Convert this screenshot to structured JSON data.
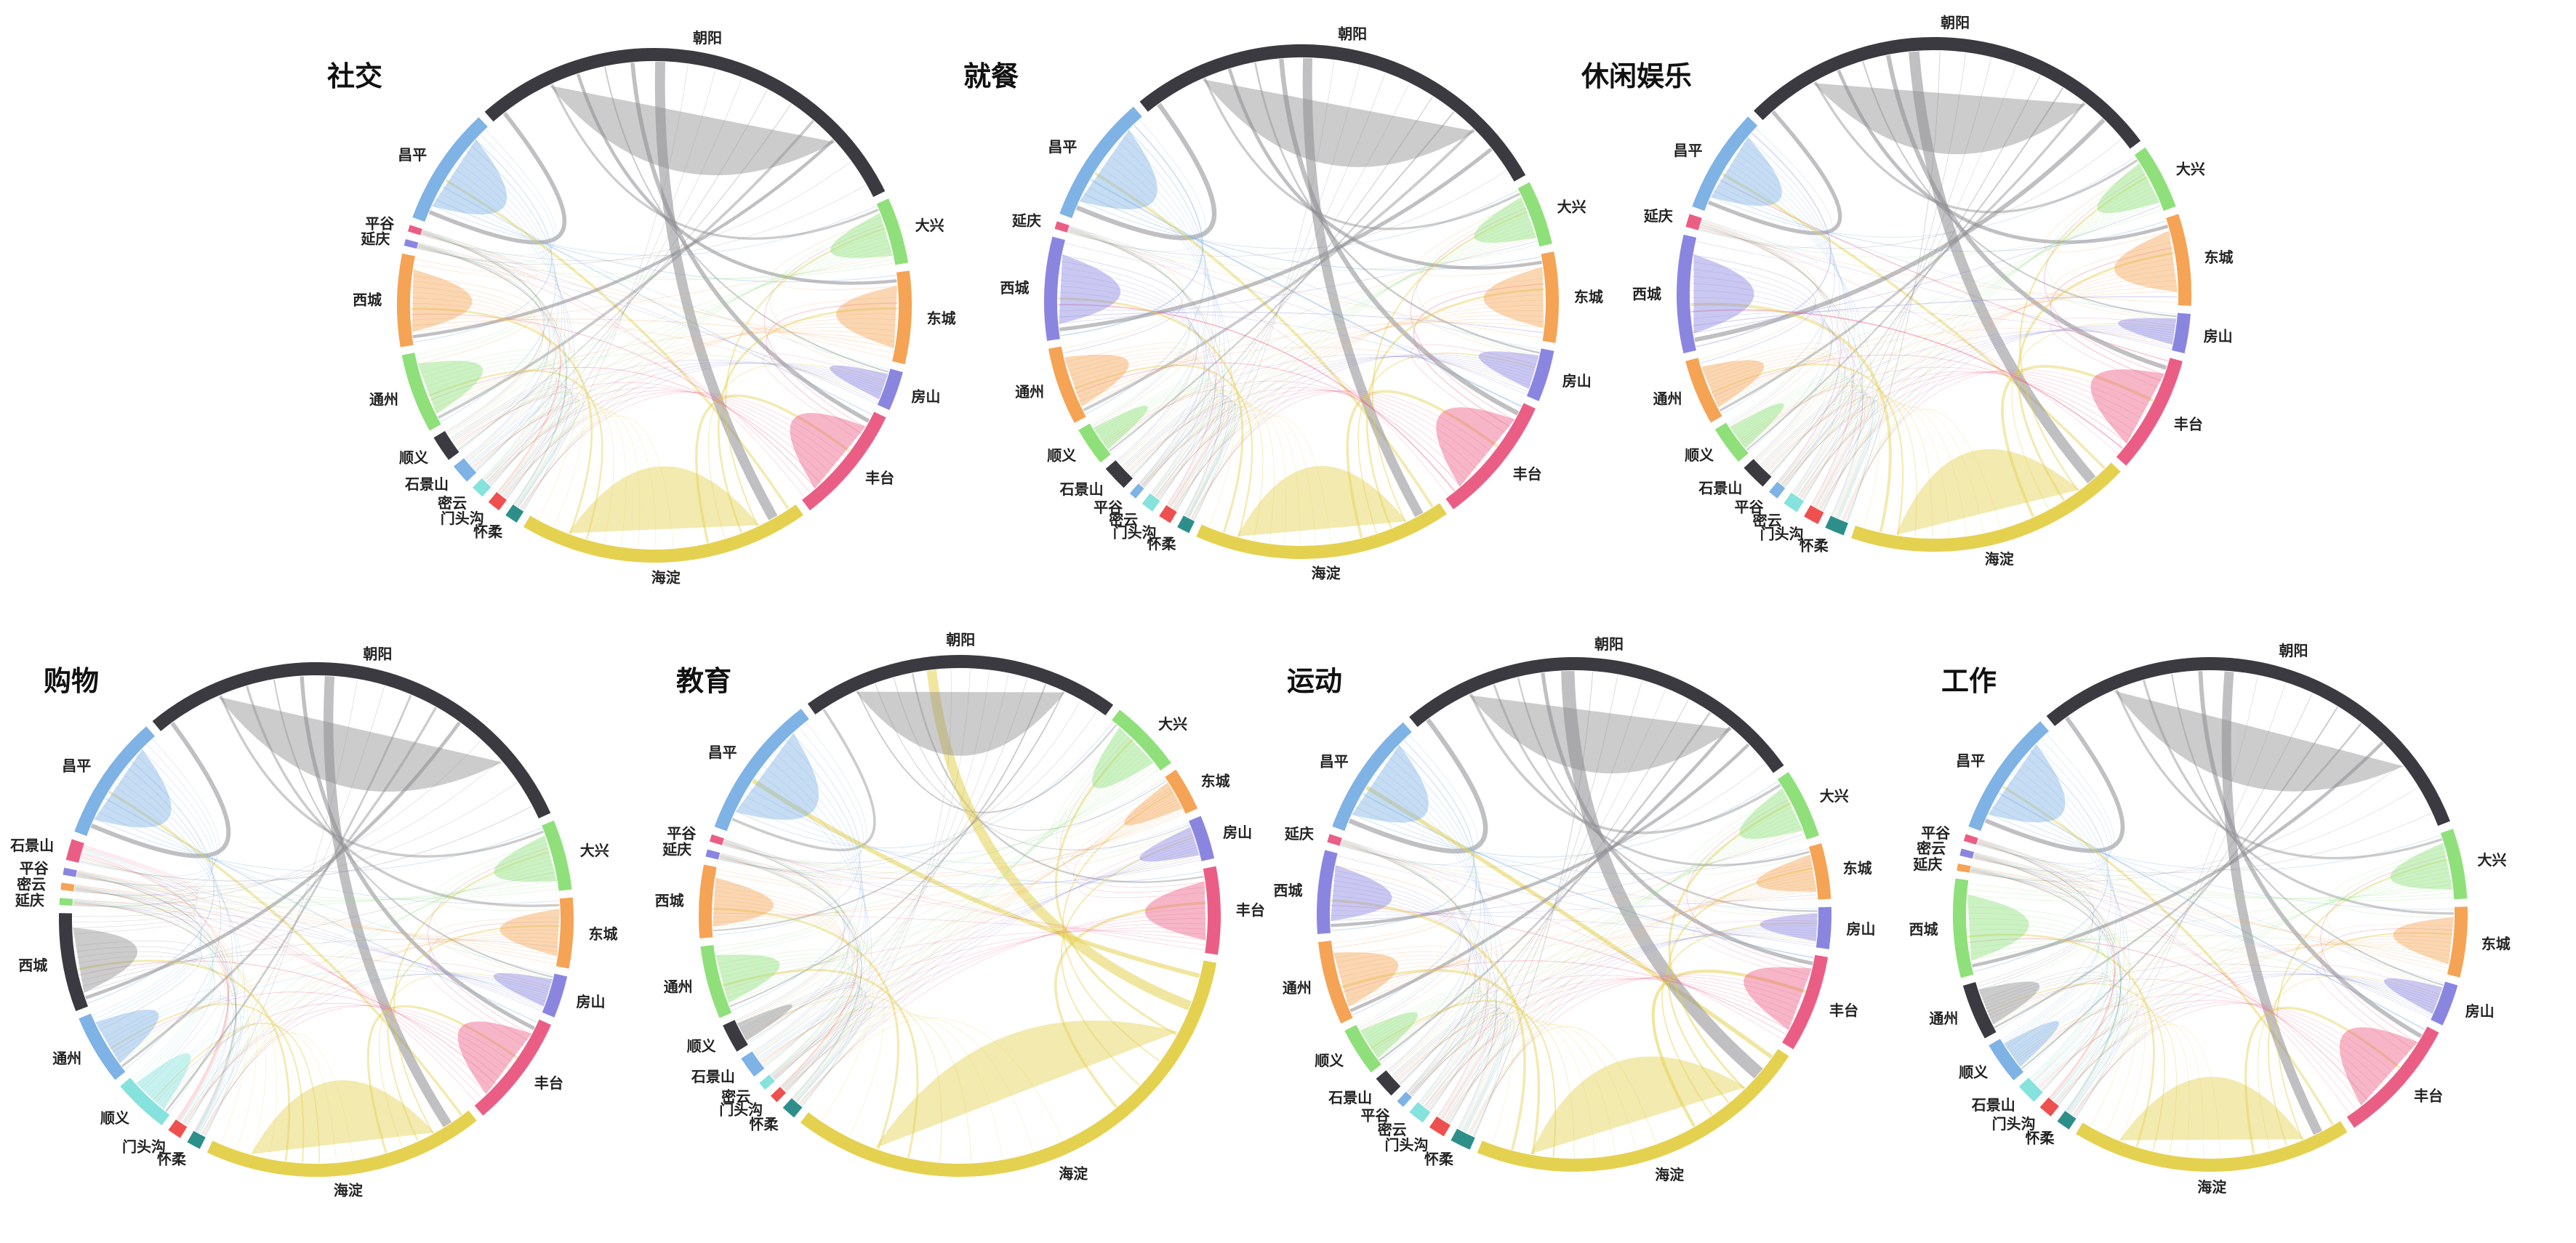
{
  "chart_data": [
    {
      "type": "chord",
      "title": "社交",
      "segments": [
        {
          "name": "昌平",
          "value": 9,
          "color": "#7fb2e5"
        },
        {
          "name": "朝阳",
          "value": 35,
          "color": "#3a3a40"
        },
        {
          "name": "大兴",
          "value": 5,
          "color": "#8fe07a"
        },
        {
          "name": "东城",
          "value": 7,
          "color": "#f5a355"
        },
        {
          "name": "房山",
          "value": 3,
          "color": "#8a86e0"
        },
        {
          "name": "丰台",
          "value": 9,
          "color": "#ea5e86"
        },
        {
          "name": "海淀",
          "value": 22,
          "color": "#e5d150"
        },
        {
          "name": "怀柔",
          "value": 1,
          "color": "#2e8f8a"
        },
        {
          "name": "门头沟",
          "value": 1,
          "color": "#ee5050"
        },
        {
          "name": "密云",
          "value": 1,
          "color": "#86e2dc"
        },
        {
          "name": "石景山",
          "value": 1.5,
          "color": "#7fb2e5"
        },
        {
          "name": "顺义",
          "value": 2,
          "color": "#3a3a40"
        },
        {
          "name": "通州",
          "value": 6,
          "color": "#8fe07a"
        },
        {
          "name": "西城",
          "value": 7,
          "color": "#f5a355"
        },
        {
          "name": "延庆",
          "value": 0.5,
          "color": "#8a86e0"
        },
        {
          "name": "平谷",
          "value": 0.5,
          "color": "#ea5e86"
        }
      ]
    },
    {
      "type": "chord",
      "title": "就餐",
      "segments": [
        {
          "name": "昌平",
          "value": 10,
          "color": "#7fb2e5"
        },
        {
          "name": "朝阳",
          "value": 34,
          "color": "#3a3a40"
        },
        {
          "name": "大兴",
          "value": 5,
          "color": "#8fe07a"
        },
        {
          "name": "东城",
          "value": 7,
          "color": "#f5a355"
        },
        {
          "name": "房山",
          "value": 4,
          "color": "#8a86e0"
        },
        {
          "name": "丰台",
          "value": 10,
          "color": "#ea5e86"
        },
        {
          "name": "海淀",
          "value": 20,
          "color": "#e5d150"
        },
        {
          "name": "怀柔",
          "value": 1,
          "color": "#2e8f8a"
        },
        {
          "name": "门头沟",
          "value": 1,
          "color": "#ee5050"
        },
        {
          "name": "密云",
          "value": 1,
          "color": "#86e2dc"
        },
        {
          "name": "平谷",
          "value": 0.6,
          "color": "#7fb2e5"
        },
        {
          "name": "石景山",
          "value": 2,
          "color": "#3a3a40"
        },
        {
          "name": "顺义",
          "value": 3,
          "color": "#8fe07a"
        },
        {
          "name": "通州",
          "value": 6,
          "color": "#f5a355"
        },
        {
          "name": "西城",
          "value": 8,
          "color": "#8a86e0"
        },
        {
          "name": "延庆",
          "value": 0.6,
          "color": "#ea5e86"
        }
      ]
    },
    {
      "type": "chord",
      "title": "休闲娱乐",
      "segments": [
        {
          "name": "昌平",
          "value": 8,
          "color": "#7fb2e5"
        },
        {
          "name": "朝阳",
          "value": 33,
          "color": "#3a3a40"
        },
        {
          "name": "大兴",
          "value": 5,
          "color": "#8fe07a"
        },
        {
          "name": "东城",
          "value": 7,
          "color": "#f5a355"
        },
        {
          "name": "房山",
          "value": 3,
          "color": "#8a86e0"
        },
        {
          "name": "丰台",
          "value": 9,
          "color": "#ea5e86"
        },
        {
          "name": "海淀",
          "value": 22,
          "color": "#e5d150"
        },
        {
          "name": "怀柔",
          "value": 1.5,
          "color": "#2e8f8a"
        },
        {
          "name": "门头沟",
          "value": 1.2,
          "color": "#ee5050"
        },
        {
          "name": "密云",
          "value": 1.2,
          "color": "#86e2dc"
        },
        {
          "name": "平谷",
          "value": 0.8,
          "color": "#7fb2e5"
        },
        {
          "name": "石景山",
          "value": 2,
          "color": "#3a3a40"
        },
        {
          "name": "顺义",
          "value": 3,
          "color": "#8fe07a"
        },
        {
          "name": "通州",
          "value": 5,
          "color": "#f5a355"
        },
        {
          "name": "西城",
          "value": 9,
          "color": "#8a86e0"
        },
        {
          "name": "延庆",
          "value": 1,
          "color": "#ea5e86"
        }
      ]
    },
    {
      "type": "chord",
      "title": "购物",
      "segments": [
        {
          "name": "昌平",
          "value": 9,
          "color": "#7fb2e5"
        },
        {
          "name": "朝阳",
          "value": 33,
          "color": "#3a3a40"
        },
        {
          "name": "大兴",
          "value": 5,
          "color": "#8fe07a"
        },
        {
          "name": "东城",
          "value": 5,
          "color": "#f5a355"
        },
        {
          "name": "房山",
          "value": 3,
          "color": "#8a86e0"
        },
        {
          "name": "丰台",
          "value": 8,
          "color": "#ea5e86"
        },
        {
          "name": "海淀",
          "value": 20,
          "color": "#e5d150"
        },
        {
          "name": "怀柔",
          "value": 1,
          "color": "#2e8f8a"
        },
        {
          "name": "门头沟",
          "value": 1,
          "color": "#ee5050"
        },
        {
          "name": "顺义",
          "value": 4,
          "color": "#86e2dc"
        },
        {
          "name": "通州",
          "value": 5,
          "color": "#7fb2e5"
        },
        {
          "name": "西城",
          "value": 7,
          "color": "#3a3a40"
        },
        {
          "name": "延庆",
          "value": 0.5,
          "color": "#8fe07a"
        },
        {
          "name": "密云",
          "value": 0.5,
          "color": "#f5a355"
        },
        {
          "name": "平谷",
          "value": 0.5,
          "color": "#8a86e0"
        },
        {
          "name": "石景山",
          "value": 1.5,
          "color": "#ea5e86"
        }
      ]
    },
    {
      "type": "chord",
      "title": "教育",
      "segments": [
        {
          "name": "昌平",
          "value": 10,
          "color": "#7fb2e5"
        },
        {
          "name": "朝阳",
          "value": 22,
          "color": "#3a3a40"
        },
        {
          "name": "大兴",
          "value": 5,
          "color": "#8fe07a"
        },
        {
          "name": "东城",
          "value": 3,
          "color": "#f5a355"
        },
        {
          "name": "房山",
          "value": 3,
          "color": "#8a86e0"
        },
        {
          "name": "丰台",
          "value": 6,
          "color": "#ea5e86"
        },
        {
          "name": "海淀",
          "value": 36,
          "color": "#e5d150"
        },
        {
          "name": "怀柔",
          "value": 1,
          "color": "#2e8f8a"
        },
        {
          "name": "门头沟",
          "value": 0.6,
          "color": "#ee5050"
        },
        {
          "name": "密云",
          "value": 0.6,
          "color": "#86e2dc"
        },
        {
          "name": "石景山",
          "value": 1.5,
          "color": "#7fb2e5"
        },
        {
          "name": "顺义",
          "value": 2,
          "color": "#3a3a40"
        },
        {
          "name": "通州",
          "value": 5,
          "color": "#8fe07a"
        },
        {
          "name": "西城",
          "value": 5,
          "color": "#f5a355"
        },
        {
          "name": "延庆",
          "value": 0.5,
          "color": "#8a86e0"
        },
        {
          "name": "平谷",
          "value": 0.5,
          "color": "#ea5e86"
        }
      ]
    },
    {
      "type": "chord",
      "title": "运动",
      "segments": [
        {
          "name": "昌平",
          "value": 9,
          "color": "#7fb2e5"
        },
        {
          "name": "朝阳",
          "value": 30,
          "color": "#3a3a40"
        },
        {
          "name": "大兴",
          "value": 5,
          "color": "#8fe07a"
        },
        {
          "name": "东城",
          "value": 4,
          "color": "#f5a355"
        },
        {
          "name": "房山",
          "value": 3,
          "color": "#8a86e0"
        },
        {
          "name": "丰台",
          "value": 7,
          "color": "#ea5e86"
        },
        {
          "name": "海淀",
          "value": 25,
          "color": "#e5d150"
        },
        {
          "name": "怀柔",
          "value": 1.5,
          "color": "#2e8f8a"
        },
        {
          "name": "门头沟",
          "value": 1.2,
          "color": "#ee5050"
        },
        {
          "name": "密云",
          "value": 1.2,
          "color": "#86e2dc"
        },
        {
          "name": "平谷",
          "value": 0.6,
          "color": "#7fb2e5"
        },
        {
          "name": "石景山",
          "value": 1.6,
          "color": "#3a3a40"
        },
        {
          "name": "顺义",
          "value": 3.5,
          "color": "#8fe07a"
        },
        {
          "name": "通州",
          "value": 6,
          "color": "#f5a355"
        },
        {
          "name": "西城",
          "value": 6,
          "color": "#8a86e0"
        },
        {
          "name": "延庆",
          "value": 0.6,
          "color": "#ea5e86"
        }
      ]
    },
    {
      "type": "chord",
      "title": "工作",
      "segments": [
        {
          "name": "昌平",
          "value": 9,
          "color": "#7fb2e5"
        },
        {
          "name": "朝阳",
          "value": 34,
          "color": "#3a3a40"
        },
        {
          "name": "大兴",
          "value": 5,
          "color": "#8fe07a"
        },
        {
          "name": "东城",
          "value": 5,
          "color": "#f5a355"
        },
        {
          "name": "房山",
          "value": 3,
          "color": "#8a86e0"
        },
        {
          "name": "丰台",
          "value": 9,
          "color": "#ea5e86"
        },
        {
          "name": "海淀",
          "value": 20,
          "color": "#e5d150"
        },
        {
          "name": "怀柔",
          "value": 1,
          "color": "#2e8f8a"
        },
        {
          "name": "门头沟",
          "value": 1,
          "color": "#ee5050"
        },
        {
          "name": "石景山",
          "value": 1.5,
          "color": "#86e2dc"
        },
        {
          "name": "顺义",
          "value": 3,
          "color": "#7fb2e5"
        },
        {
          "name": "通州",
          "value": 4,
          "color": "#3a3a40"
        },
        {
          "name": "西城",
          "value": 7,
          "color": "#8fe07a"
        },
        {
          "name": "延庆",
          "value": 0.5,
          "color": "#f5a355"
        },
        {
          "name": "密云",
          "value": 0.5,
          "color": "#8a86e0"
        },
        {
          "name": "平谷",
          "value": 0.5,
          "color": "#ea5e86"
        }
      ]
    }
  ]
}
